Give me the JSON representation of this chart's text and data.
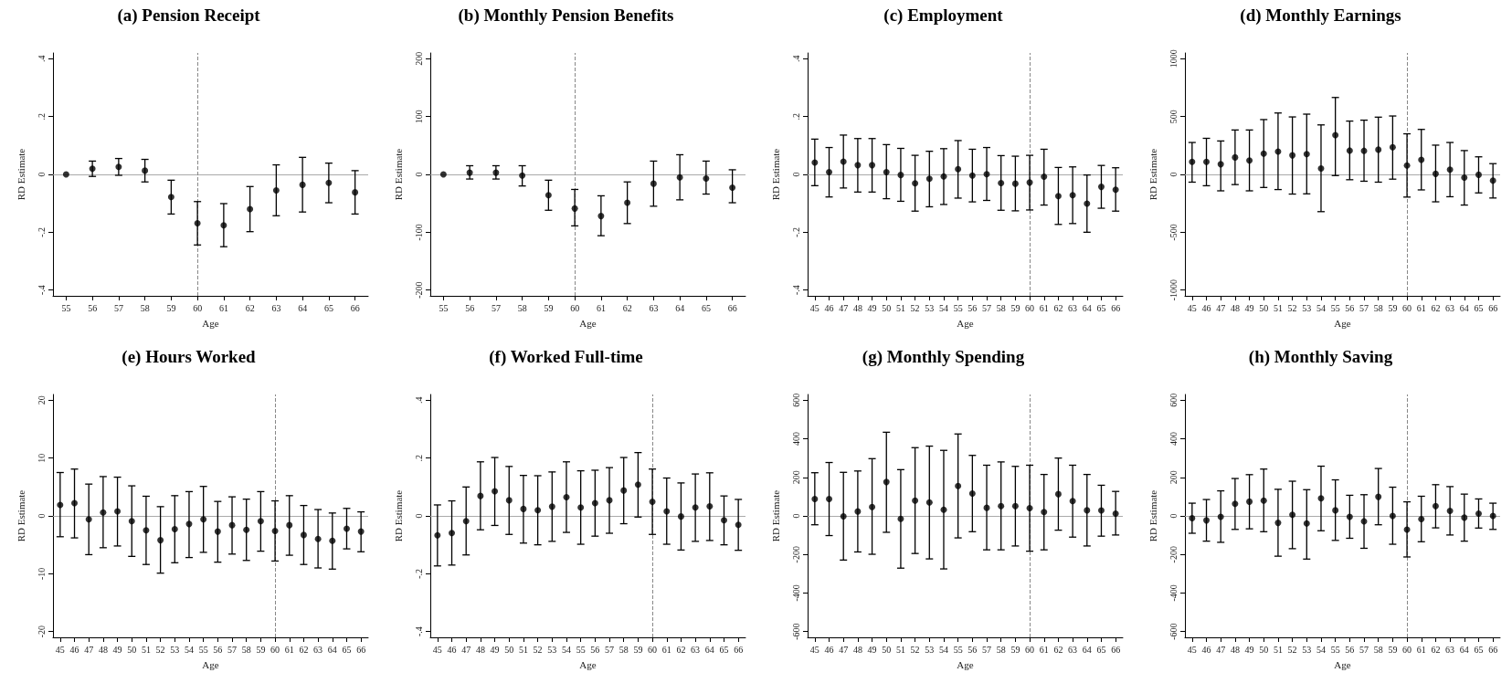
{
  "chart_data": [
    {
      "type": "scatter",
      "title": "(a) Pension Receipt",
      "xlabel": "Age",
      "ylabel": "RD Estimate",
      "marker": "circle",
      "color": "#000000",
      "x": [
        55,
        56,
        57,
        58,
        59,
        60,
        61,
        62,
        63,
        64,
        65,
        66
      ],
      "values": [
        0,
        0.02,
        0.026,
        0.013,
        -0.078,
        -0.169,
        -0.176,
        -0.12,
        -0.055,
        -0.036,
        -0.029,
        -0.062
      ],
      "errors": [
        null,
        [
          -0.007,
          0.046
        ],
        [
          -0.003,
          0.055
        ],
        [
          -0.026,
          0.052
        ],
        [
          -0.137,
          -0.02
        ],
        [
          -0.244,
          -0.094
        ],
        [
          -0.25,
          -0.101
        ],
        [
          -0.198,
          -0.042
        ],
        [
          -0.143,
          0.033
        ],
        [
          -0.13,
          0.059
        ],
        [
          -0.098,
          0.039
        ],
        [
          -0.137,
          0.013
        ]
      ],
      "xlim": [
        54.5,
        66.5
      ],
      "xticks": [
        55,
        56,
        57,
        58,
        59,
        60,
        61,
        62,
        63,
        64,
        65,
        66
      ],
      "ylim": [
        -0.42,
        0.42
      ],
      "yticks": [
        {
          "value": -0.4,
          "label": "-.4"
        },
        {
          "value": -0.2,
          "label": "-.2"
        },
        0,
        {
          "value": 0.2,
          "label": ".2"
        },
        {
          "value": 0.4,
          "label": ".4"
        }
      ],
      "ref_lines": [
        {
          "axis": "y",
          "value": 0,
          "color": "#aaaaaa",
          "line_style": "solid"
        },
        {
          "axis": "x",
          "value": 60,
          "color": "#888888",
          "line_style": "dashed"
        }
      ]
    },
    {
      "type": "scatter",
      "title": "(b) Monthly Pension Benefits",
      "xlabel": "Age",
      "ylabel": "RD Estimate",
      "marker": "circle",
      "color": "#000000",
      "x": [
        55,
        56,
        57,
        58,
        59,
        60,
        61,
        62,
        63,
        64,
        65,
        66
      ],
      "values": [
        0,
        3,
        3,
        -2,
        -36,
        -59,
        -72,
        -49,
        -16,
        -5,
        -7,
        -23
      ],
      "errors": [
        null,
        [
          -8,
          15
        ],
        [
          -8,
          15
        ],
        [
          -20,
          15
        ],
        [
          -62,
          -10
        ],
        [
          -89,
          -26
        ],
        [
          -106,
          -37
        ],
        [
          -85,
          -13
        ],
        [
          -55,
          23
        ],
        [
          -44,
          34
        ],
        [
          -34,
          23
        ],
        [
          -49,
          8
        ]
      ],
      "xlim": [
        54.5,
        66.5
      ],
      "xticks": [
        55,
        56,
        57,
        58,
        59,
        60,
        61,
        62,
        63,
        64,
        65,
        66
      ],
      "ylim": [
        -210,
        210
      ],
      "yticks": [
        -200,
        -100,
        0,
        100,
        200
      ],
      "ref_lines": [
        {
          "axis": "y",
          "value": 0,
          "color": "#aaaaaa",
          "line_style": "solid"
        },
        {
          "axis": "x",
          "value": 60,
          "color": "#888888",
          "line_style": "dashed"
        }
      ]
    },
    {
      "type": "scatter",
      "title": "(c) Employment",
      "xlabel": "Age",
      "ylabel": "RD Estimate",
      "marker": "circle",
      "color": "#000000",
      "x": [
        45,
        46,
        47,
        48,
        49,
        50,
        51,
        52,
        53,
        54,
        55,
        56,
        57,
        58,
        59,
        60,
        61,
        62,
        63,
        64,
        65,
        66
      ],
      "values": [
        0.041,
        0.008,
        0.044,
        0.032,
        0.032,
        0.008,
        -0.002,
        -0.031,
        -0.015,
        -0.007,
        0.018,
        -0.004,
        0.001,
        -0.03,
        -0.032,
        -0.028,
        -0.008,
        -0.075,
        -0.072,
        -0.101,
        -0.043,
        -0.053
      ],
      "errors": [
        [
          -0.039,
          0.122
        ],
        [
          -0.078,
          0.093
        ],
        [
          -0.047,
          0.136
        ],
        [
          -0.061,
          0.124
        ],
        [
          -0.061,
          0.124
        ],
        [
          -0.084,
          0.103
        ],
        [
          -0.093,
          0.09
        ],
        [
          -0.127,
          0.066
        ],
        [
          -0.112,
          0.08
        ],
        [
          -0.104,
          0.089
        ],
        [
          -0.082,
          0.117
        ],
        [
          -0.095,
          0.087
        ],
        [
          -0.09,
          0.093
        ],
        [
          -0.124,
          0.065
        ],
        [
          -0.126,
          0.063
        ],
        [
          -0.123,
          0.066
        ],
        [
          -0.106,
          0.087
        ],
        [
          -0.173,
          0.024
        ],
        [
          -0.17,
          0.026
        ],
        [
          -0.2,
          -0.002
        ],
        [
          -0.117,
          0.031
        ],
        [
          -0.127,
          0.023
        ]
      ],
      "xlim": [
        44.5,
        66.5
      ],
      "xticks": [
        45,
        46,
        47,
        48,
        49,
        50,
        51,
        52,
        53,
        54,
        55,
        56,
        57,
        58,
        59,
        60,
        61,
        62,
        63,
        64,
        65,
        66
      ],
      "ylim": [
        -0.42,
        0.42
      ],
      "yticks": [
        {
          "value": -0.4,
          "label": "-.4"
        },
        {
          "value": -0.2,
          "label": "-.2"
        },
        0,
        {
          "value": 0.2,
          "label": ".2"
        },
        {
          "value": 0.4,
          "label": ".4"
        }
      ],
      "ref_lines": [
        {
          "axis": "y",
          "value": 0,
          "color": "#aaaaaa",
          "line_style": "solid"
        },
        {
          "axis": "x",
          "value": 60,
          "color": "#888888",
          "line_style": "dashed"
        }
      ]
    },
    {
      "type": "scatter",
      "title": "(d) Monthly Earnings",
      "xlabel": "Age",
      "ylabel": "RD Estimate",
      "marker": "circle",
      "color": "#000000",
      "x": [
        45,
        46,
        47,
        48,
        49,
        50,
        51,
        52,
        53,
        54,
        55,
        56,
        57,
        58,
        59,
        60,
        61,
        62,
        63,
        64,
        65,
        66
      ],
      "values": [
        108,
        108,
        88,
        147,
        121,
        180,
        198,
        165,
        175,
        52,
        340,
        206,
        204,
        214,
        235,
        77,
        126,
        5,
        41,
        -28,
        -3,
        -54
      ],
      "errors": [
        [
          -67,
          276
        ],
        [
          -98,
          312
        ],
        [
          -142,
          289
        ],
        [
          -88,
          384
        ],
        [
          -142,
          384
        ],
        [
          -113,
          474
        ],
        [
          -131,
          531
        ],
        [
          -170,
          497
        ],
        [
          -168,
          521
        ],
        [
          -322,
          428
        ],
        [
          -10,
          665
        ],
        [
          -46,
          461
        ],
        [
          -59,
          469
        ],
        [
          -67,
          495
        ],
        [
          -41,
          505
        ],
        [
          -196,
          351
        ],
        [
          -134,
          389
        ],
        [
          -237,
          253
        ],
        [
          -193,
          276
        ],
        [
          -265,
          206
        ],
        [
          -160,
          152
        ],
        [
          -204,
          93
        ]
      ],
      "xlim": [
        44.5,
        66.5
      ],
      "xticks": [
        45,
        46,
        47,
        48,
        49,
        50,
        51,
        52,
        53,
        54,
        55,
        56,
        57,
        58,
        59,
        60,
        61,
        62,
        63,
        64,
        65,
        66
      ],
      "ylim": [
        -1050,
        1050
      ],
      "yticks": [
        -1000,
        -500,
        0,
        500,
        1000
      ],
      "ref_lines": [
        {
          "axis": "y",
          "value": 0,
          "color": "#aaaaaa",
          "line_style": "solid"
        },
        {
          "axis": "x",
          "value": 60,
          "color": "#888888",
          "line_style": "dashed"
        }
      ]
    },
    {
      "type": "scatter",
      "title": "(e) Hours Worked",
      "xlabel": "Age",
      "ylabel": "RD Estimate",
      "marker": "circle",
      "color": "#000000",
      "x": [
        45,
        46,
        47,
        48,
        49,
        50,
        51,
        52,
        53,
        54,
        55,
        56,
        57,
        58,
        59,
        60,
        61,
        62,
        63,
        64,
        65,
        66
      ],
      "values": [
        1.9,
        2.2,
        -0.6,
        0.6,
        0.8,
        -0.9,
        -2.5,
        -4.2,
        -2.3,
        -1.4,
        -0.6,
        -2.7,
        -1.6,
        -2.4,
        -0.9,
        -2.6,
        -1.6,
        -3.3,
        -4,
        -4.3,
        -2.2,
        -2.7
      ],
      "errors": [
        [
          -3.6,
          7.5
        ],
        [
          -3.8,
          8.1
        ],
        [
          -6.7,
          5.5
        ],
        [
          -5.5,
          6.8
        ],
        [
          -5.2,
          6.7
        ],
        [
          -7,
          5.2
        ],
        [
          -8.4,
          3.4
        ],
        [
          -9.9,
          1.6
        ],
        [
          -8.1,
          3.5
        ],
        [
          -7.2,
          4.2
        ],
        [
          -6.3,
          5.1
        ],
        [
          -8,
          2.5
        ],
        [
          -6.6,
          3.3
        ],
        [
          -7.7,
          2.9
        ],
        [
          -6.1,
          4.2
        ],
        [
          -7.8,
          2.6
        ],
        [
          -6.8,
          3.5
        ],
        [
          -8.4,
          1.8
        ],
        [
          -9,
          1.1
        ],
        [
          -9.2,
          0.5
        ],
        [
          -5.7,
          1.3
        ],
        [
          -6.2,
          0.7
        ]
      ],
      "xlim": [
        44.5,
        66.5
      ],
      "xticks": [
        45,
        46,
        47,
        48,
        49,
        50,
        51,
        52,
        53,
        54,
        55,
        56,
        57,
        58,
        59,
        60,
        61,
        62,
        63,
        64,
        65,
        66
      ],
      "ylim": [
        -21,
        21
      ],
      "yticks": [
        -20,
        -10,
        0,
        10,
        20
      ],
      "ref_lines": [
        {
          "axis": "y",
          "value": 0,
          "color": "#aaaaaa",
          "line_style": "solid"
        },
        {
          "axis": "x",
          "value": 60,
          "color": "#888888",
          "line_style": "dashed"
        }
      ]
    },
    {
      "type": "scatter",
      "title": "(f) Worked Full-time",
      "xlabel": "Age",
      "ylabel": "RD Estimate",
      "marker": "circle",
      "color": "#000000",
      "x": [
        45,
        46,
        47,
        48,
        49,
        50,
        51,
        52,
        53,
        54,
        55,
        56,
        57,
        58,
        59,
        60,
        61,
        62,
        63,
        64,
        65,
        66
      ],
      "values": [
        -0.067,
        -0.059,
        -0.018,
        0.069,
        0.085,
        0.054,
        0.024,
        0.02,
        0.032,
        0.065,
        0.029,
        0.044,
        0.054,
        0.088,
        0.108,
        0.049,
        0.016,
        -0.002,
        0.029,
        0.033,
        -0.015,
        -0.031
      ],
      "errors": [
        [
          -0.173,
          0.038
        ],
        [
          -0.17,
          0.052
        ],
        [
          -0.135,
          0.1
        ],
        [
          -0.048,
          0.187
        ],
        [
          -0.033,
          0.202
        ],
        [
          -0.064,
          0.171
        ],
        [
          -0.094,
          0.14
        ],
        [
          -0.1,
          0.139
        ],
        [
          -0.088,
          0.152
        ],
        [
          -0.057,
          0.187
        ],
        [
          -0.098,
          0.156
        ],
        [
          -0.07,
          0.158
        ],
        [
          -0.06,
          0.167
        ],
        [
          -0.027,
          0.202
        ],
        [
          -0.004,
          0.219
        ],
        [
          -0.064,
          0.162
        ],
        [
          -0.098,
          0.131
        ],
        [
          -0.118,
          0.114
        ],
        [
          -0.088,
          0.145
        ],
        [
          -0.085,
          0.149
        ],
        [
          -0.1,
          0.069
        ],
        [
          -0.119,
          0.057
        ]
      ],
      "xlim": [
        44.5,
        66.5
      ],
      "xticks": [
        45,
        46,
        47,
        48,
        49,
        50,
        51,
        52,
        53,
        54,
        55,
        56,
        57,
        58,
        59,
        60,
        61,
        62,
        63,
        64,
        65,
        66
      ],
      "ylim": [
        -0.42,
        0.42
      ],
      "yticks": [
        {
          "value": -0.4,
          "label": "-.4"
        },
        {
          "value": -0.2,
          "label": "-.2"
        },
        0,
        {
          "value": 0.2,
          "label": ".2"
        },
        {
          "value": 0.4,
          "label": ".4"
        }
      ],
      "ref_lines": [
        {
          "axis": "y",
          "value": 0,
          "color": "#aaaaaa",
          "line_style": "solid"
        },
        {
          "axis": "x",
          "value": 60,
          "color": "#888888",
          "line_style": "dashed"
        }
      ]
    },
    {
      "type": "scatter",
      "title": "(g) Monthly Spending",
      "xlabel": "Age",
      "ylabel": "RD Estimate",
      "marker": "circle",
      "color": "#000000",
      "x": [
        45,
        46,
        47,
        48,
        49,
        50,
        51,
        52,
        53,
        54,
        55,
        56,
        57,
        58,
        59,
        60,
        61,
        62,
        63,
        64,
        65,
        66
      ],
      "values": [
        88,
        88,
        -2,
        23,
        46,
        176,
        -15,
        79,
        70,
        32,
        155,
        116,
        42,
        51,
        51,
        40,
        20,
        113,
        77,
        29,
        28,
        12
      ],
      "errors": [
        [
          -46,
          224
        ],
        [
          -102,
          277
        ],
        [
          -229,
          226
        ],
        [
          -187,
          233
        ],
        [
          -199,
          297
        ],
        [
          -85,
          434
        ],
        [
          -271,
          240
        ],
        [
          -195,
          354
        ],
        [
          -223,
          362
        ],
        [
          -275,
          340
        ],
        [
          -114,
          425
        ],
        [
          -82,
          314
        ],
        [
          -176,
          263
        ],
        [
          -176,
          280
        ],
        [
          -156,
          257
        ],
        [
          -183,
          263
        ],
        [
          -176,
          215
        ],
        [
          -74,
          300
        ],
        [
          -110,
          263
        ],
        [
          -156,
          215
        ],
        [
          -105,
          159
        ],
        [
          -99,
          127
        ]
      ],
      "xlim": [
        44.5,
        66.5
      ],
      "xticks": [
        45,
        46,
        47,
        48,
        49,
        50,
        51,
        52,
        53,
        54,
        55,
        56,
        57,
        58,
        59,
        60,
        61,
        62,
        63,
        64,
        65,
        66
      ],
      "ylim": [
        -630,
        630
      ],
      "yticks": [
        -600,
        -400,
        -200,
        0,
        200,
        400,
        600
      ],
      "ref_lines": [
        {
          "axis": "y",
          "value": 0,
          "color": "#aaaaaa",
          "line_style": "solid"
        },
        {
          "axis": "x",
          "value": 60,
          "color": "#888888",
          "line_style": "dashed"
        }
      ]
    },
    {
      "type": "scatter",
      "title": "(h) Monthly Saving",
      "xlabel": "Age",
      "ylabel": "RD Estimate",
      "marker": "circle",
      "color": "#000000",
      "x": [
        45,
        46,
        47,
        48,
        49,
        50,
        51,
        52,
        53,
        54,
        55,
        56,
        57,
        58,
        59,
        60,
        61,
        62,
        63,
        64,
        65,
        66
      ],
      "values": [
        -12,
        -23,
        -5,
        63,
        74,
        79,
        -36,
        6,
        -39,
        91,
        29,
        -5,
        -28,
        99,
        0,
        -71,
        -17,
        51,
        26,
        -9,
        12,
        0
      ],
      "errors": [
        [
          -90,
          66
        ],
        [
          -131,
          85
        ],
        [
          -137,
          130
        ],
        [
          -70,
          194
        ],
        [
          -67,
          214
        ],
        [
          -82,
          243
        ],
        [
          -209,
          138
        ],
        [
          -170,
          180
        ],
        [
          -224,
          136
        ],
        [
          -77,
          258
        ],
        [
          -127,
          187
        ],
        [
          -116,
          107
        ],
        [
          -168,
          110
        ],
        [
          -46,
          246
        ],
        [
          -147,
          149
        ],
        [
          -213,
          73
        ],
        [
          -134,
          102
        ],
        [
          -62,
          162
        ],
        [
          -99,
          152
        ],
        [
          -131,
          113
        ],
        [
          -63,
          88
        ],
        [
          -70,
          66
        ]
      ],
      "xlim": [
        44.5,
        66.5
      ],
      "xticks": [
        45,
        46,
        47,
        48,
        49,
        50,
        51,
        52,
        53,
        54,
        55,
        56,
        57,
        58,
        59,
        60,
        61,
        62,
        63,
        64,
        65,
        66
      ],
      "ylim": [
        -630,
        630
      ],
      "yticks": [
        -600,
        -400,
        -200,
        0,
        200,
        400,
        600
      ],
      "ref_lines": [
        {
          "axis": "y",
          "value": 0,
          "color": "#aaaaaa",
          "line_style": "solid"
        },
        {
          "axis": "x",
          "value": 60,
          "color": "#888888",
          "line_style": "dashed"
        }
      ]
    }
  ]
}
